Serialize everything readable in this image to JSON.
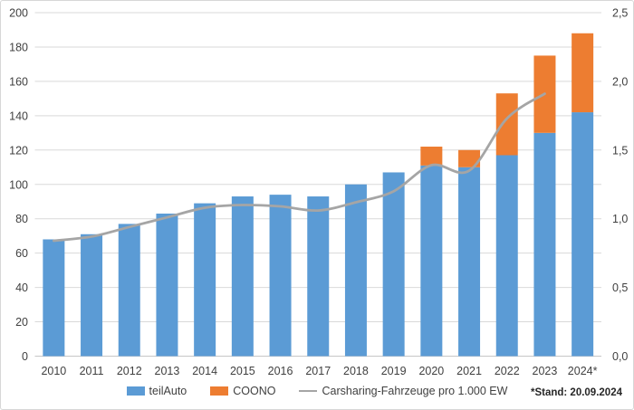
{
  "legend": {
    "items": [
      {
        "label": "teilAuto",
        "color": "#5B9BD5",
        "kind": "bar"
      },
      {
        "label": "COONO",
        "color": "#ED7D31",
        "kind": "bar"
      },
      {
        "label": "Carsharing-Fahrzeuge pro 1.000 EW",
        "color": "#A5A5A5",
        "kind": "line"
      }
    ]
  },
  "footnote": {
    "text": "*Stand: 20.09.2024"
  },
  "colors": {
    "teilauto_blue": "#5B9BD5",
    "coono_orange": "#ED7D31",
    "line_gray": "#A5A5A5",
    "gridline": "#D9D9D9",
    "axis_line": "#C6C6C6",
    "label_text": "#404040"
  },
  "chart_data": {
    "type": "bar",
    "subtype": "stacked-bars-with-secondary-axis-line",
    "title": "",
    "xlabel": "",
    "ylabel": "",
    "grid": "horizontal",
    "legend_position": "bottom",
    "footnote": "*Stand: 20.09.2024",
    "categories": [
      "2010",
      "2011",
      "2012",
      "2013",
      "2014",
      "2015",
      "2016",
      "2017",
      "2018",
      "2019",
      "2020",
      "2021",
      "2022",
      "2023",
      "2024*"
    ],
    "series": [
      {
        "name": "teilAuto",
        "type": "bar",
        "stack": "vehicles",
        "color": "#5B9BD5",
        "values": [
          68,
          71,
          77,
          83,
          89,
          93,
          94,
          93,
          100,
          107,
          111,
          110,
          117,
          130,
          142
        ]
      },
      {
        "name": "COONO",
        "type": "bar",
        "stack": "vehicles",
        "color": "#ED7D31",
        "values": [
          0,
          0,
          0,
          0,
          0,
          0,
          0,
          0,
          0,
          0,
          11,
          10,
          36,
          45,
          46
        ]
      },
      {
        "name": "Carsharing-Fahrzeuge pro 1.000 EW",
        "type": "line",
        "axis": "right",
        "color": "#A5A5A5",
        "smooth": true,
        "values": [
          0.84,
          0.87,
          0.94,
          1.01,
          1.08,
          1.1,
          1.09,
          1.06,
          1.12,
          1.2,
          1.39,
          1.35,
          1.73,
          1.91,
          null
        ]
      }
    ],
    "left_axis": {
      "min": 0,
      "max": 200,
      "step": 20,
      "tick_labels": [
        "0",
        "20",
        "40",
        "60",
        "80",
        "100",
        "120",
        "140",
        "160",
        "180",
        "200"
      ]
    },
    "right_axis": {
      "min": 0,
      "max": 2.5,
      "step": 0.5,
      "tick_labels": [
        "0,0",
        "0,5",
        "1,0",
        "1,5",
        "2,0",
        "2,5"
      ]
    }
  }
}
